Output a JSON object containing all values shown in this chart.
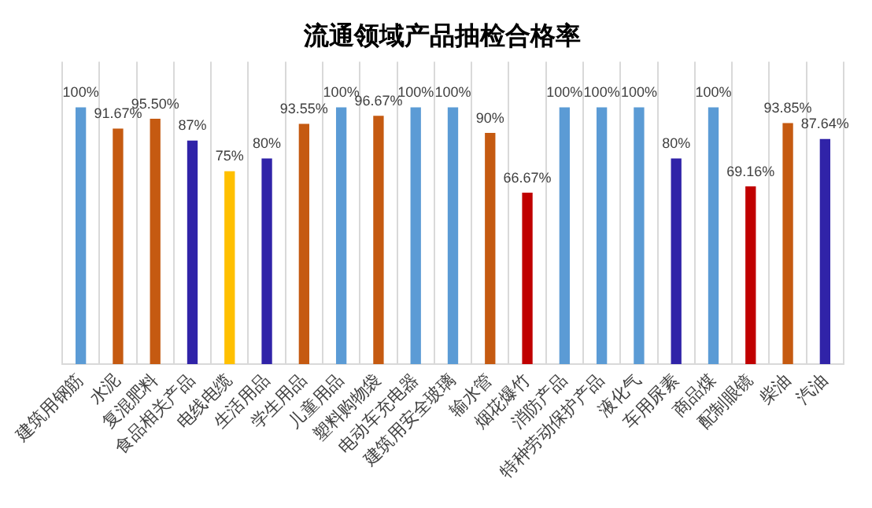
{
  "chart_data": {
    "type": "bar",
    "title": "流通领域产品抽检合格率",
    "categories": [
      "建筑用钢筋",
      "水泥",
      "复混肥料",
      "食品相关产品",
      "电线电缆",
      "生活用品",
      "学生用品",
      "儿童用品",
      "塑料购物袋",
      "电动车充电器",
      "建筑用安全玻璃",
      "输水管",
      "烟花爆竹",
      "消防产品",
      "特种劳动保护产品",
      "液化气",
      "车用尿素",
      "商品煤",
      "配制眼镜",
      "柴油",
      "汽油"
    ],
    "values": [
      100,
      91.67,
      95.5,
      87,
      75,
      80,
      93.55,
      100,
      96.67,
      100,
      100,
      90,
      66.67,
      100,
      100,
      100,
      80,
      100,
      69.16,
      93.85,
      87.64
    ],
    "value_labels": [
      "100%",
      "91.67%",
      "95.50%",
      "87%",
      "75%",
      "80%",
      "93.55%",
      "100%",
      "96.67%",
      "100%",
      "100%",
      "90%",
      "66.67%",
      "100%",
      "100%",
      "100%",
      "80%",
      "100%",
      "69.16%",
      "93.85%",
      "87.64%"
    ],
    "colors": [
      "#5b9bd5",
      "#c55a11",
      "#c55a11",
      "#3023a8",
      "#ffc000",
      "#3023a8",
      "#c55a11",
      "#5b9bd5",
      "#c55a11",
      "#5b9bd5",
      "#5b9bd5",
      "#c55a11",
      "#c00000",
      "#5b9bd5",
      "#5b9bd5",
      "#5b9bd5",
      "#3023a8",
      "#5b9bd5",
      "#c00000",
      "#c55a11",
      "#3023a8"
    ],
    "ylim": [
      0,
      118
    ],
    "tick_labels": "x",
    "grid": "x",
    "legend": false
  }
}
